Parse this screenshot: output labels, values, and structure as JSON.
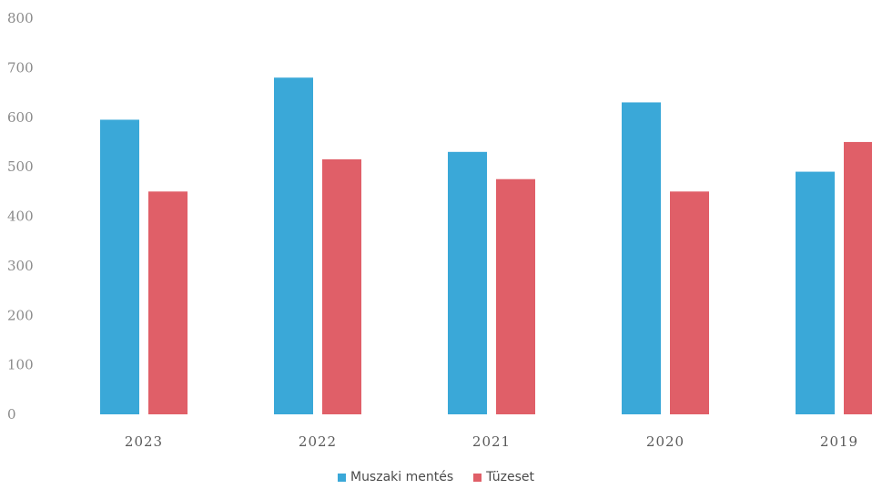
{
  "chart_data": {
    "type": "bar",
    "categories": [
      "2023",
      "2022",
      "2021",
      "2020",
      "2019"
    ],
    "series": [
      {
        "name": "Muszaki mentés",
        "color": "#3aa8d8",
        "values": [
          595,
          680,
          530,
          630,
          490
        ]
      },
      {
        "name": "Tüzeset",
        "color": "#e05f68",
        "values": [
          450,
          515,
          475,
          450,
          550
        ]
      }
    ],
    "yticks": [
      0,
      100,
      200,
      300,
      400,
      500,
      600,
      700,
      800
    ],
    "ylim": [
      0,
      800
    ],
    "grid": false,
    "legend_position": "bottom-center"
  }
}
